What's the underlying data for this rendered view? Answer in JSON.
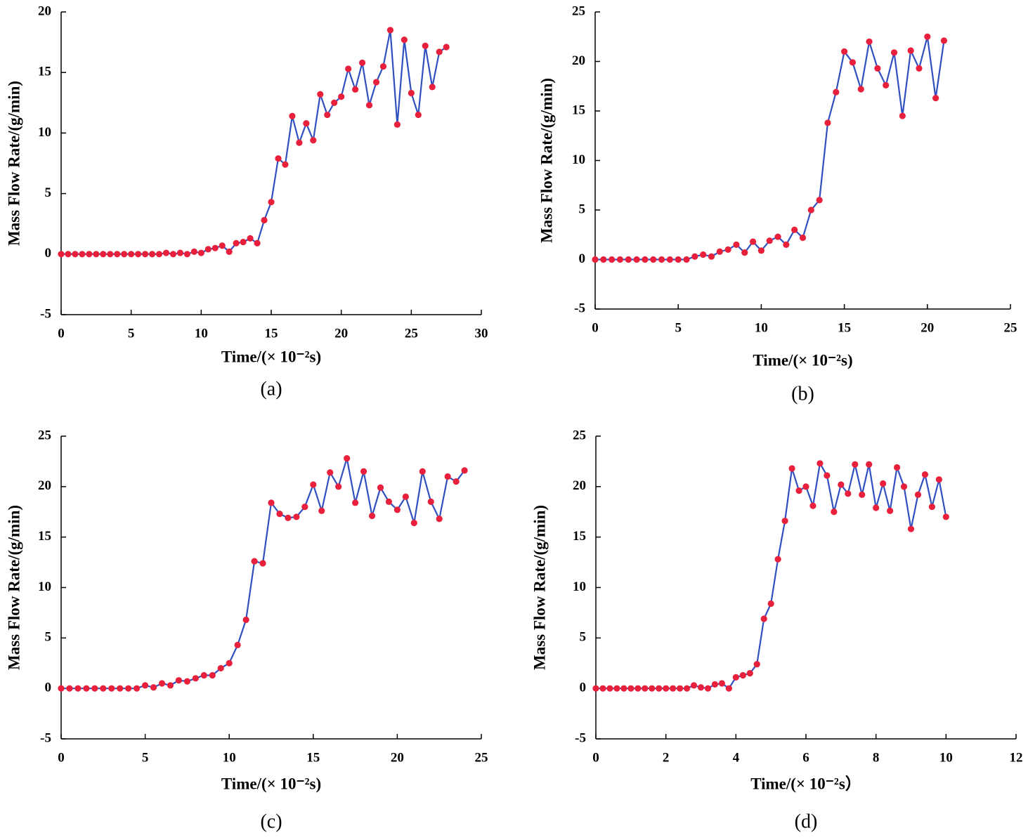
{
  "chart_data": [
    {
      "type": "line",
      "caption": "(a)",
      "xlabel": "Time/(× 10⁻²s)",
      "ylabel": "Mass Flow Rate/(g/min)",
      "x": [
        0,
        0.5,
        1,
        1.5,
        2,
        2.5,
        3,
        3.5,
        4,
        4.5,
        5,
        5.5,
        6,
        6.5,
        7,
        7.5,
        8,
        8.5,
        9,
        9.5,
        10,
        10.5,
        11,
        11.5,
        12,
        12.5,
        13,
        13.5,
        14,
        14.5,
        15,
        15.5,
        16,
        16.5,
        17,
        17.5,
        18,
        18.5,
        19,
        19.5,
        20,
        20.5,
        21,
        21.5,
        22,
        22.5,
        23,
        23.5,
        24,
        24.5,
        25,
        25.5,
        26,
        26.5,
        27,
        27.5
      ],
      "series": [
        {
          "color": "#3050c0",
          "marker_color": "#e8203c",
          "values": [
            0,
            0,
            0,
            0,
            0,
            0,
            0,
            0,
            0,
            0,
            0,
            0,
            0,
            0,
            0,
            0.1,
            0,
            0.1,
            0,
            0.2,
            0.1,
            0.4,
            0.5,
            0.7,
            0.2,
            0.9,
            1.0,
            1.3,
            0.9,
            2.8,
            4.3,
            7.9,
            7.4,
            11.4,
            9.2,
            10.8,
            9.4,
            13.2,
            11.5,
            12.5,
            13.0,
            15.3,
            13.6,
            15.8,
            12.3,
            14.2,
            15.5,
            18.5,
            10.7,
            17.7,
            13.3,
            11.5,
            17.2,
            13.8,
            16.7,
            17.1
          ]
        }
      ],
      "xlim": [
        0,
        30
      ],
      "ylim": [
        -5,
        20
      ],
      "xticks": [
        0,
        5,
        10,
        15,
        20,
        25,
        30
      ],
      "yticks": [
        -5,
        0,
        5,
        10,
        15,
        20
      ]
    },
    {
      "type": "line",
      "caption": "(b)",
      "xlabel": "Time/(× 10⁻²s)",
      "ylabel": "Mass Flow Rate/(g/min)",
      "x": [
        0,
        0.5,
        1,
        1.5,
        2,
        2.5,
        3,
        3.5,
        4,
        4.5,
        5,
        5.5,
        6,
        6.5,
        7,
        7.5,
        8,
        8.5,
        9,
        9.5,
        10,
        10.5,
        11,
        11.5,
        12,
        12.5,
        13,
        13.5,
        14,
        14.5,
        15,
        15.5,
        16,
        16.5,
        17,
        17.5,
        18,
        18.5,
        19,
        19.5,
        20,
        20.5,
        21
      ],
      "series": [
        {
          "color": "#3050c0",
          "marker_color": "#e8203c",
          "values": [
            0,
            0,
            0,
            0,
            0,
            0,
            0,
            0,
            0,
            0,
            0,
            0,
            0.3,
            0.5,
            0.3,
            0.8,
            1.0,
            1.5,
            0.7,
            1.8,
            0.9,
            1.9,
            2.3,
            1.5,
            3.0,
            2.2,
            5.0,
            6.0,
            13.8,
            16.9,
            21.0,
            19.9,
            17.2,
            22.0,
            19.3,
            17.6,
            20.9,
            14.5,
            21.1,
            19.3,
            22.5,
            16.3,
            22.1
          ]
        }
      ],
      "xlim": [
        0,
        25
      ],
      "ylim": [
        -5,
        25
      ],
      "xticks": [
        0,
        5,
        10,
        15,
        20,
        25
      ],
      "yticks": [
        -5,
        0,
        5,
        10,
        15,
        20,
        25
      ]
    },
    {
      "type": "line",
      "caption": "(c)",
      "xlabel": "Time/(× 10⁻²s)",
      "ylabel": "Mass Flow Rate/(g/min)",
      "x": [
        0,
        0.5,
        1,
        1.5,
        2,
        2.5,
        3,
        3.5,
        4,
        4.5,
        5,
        5.5,
        6,
        6.5,
        7,
        7.5,
        8,
        8.5,
        9,
        9.5,
        10,
        10.5,
        11,
        11.5,
        12,
        12.5,
        13,
        13.5,
        14,
        14.5,
        15,
        15.5,
        16,
        16.5,
        17,
        17.5,
        18,
        18.5,
        19,
        19.5,
        20,
        20.5,
        21,
        21.5,
        22,
        22.5,
        23,
        23.5,
        24
      ],
      "series": [
        {
          "color": "#3050c0",
          "marker_color": "#e8203c",
          "values": [
            0,
            0,
            0,
            0,
            0,
            0,
            0,
            0,
            0,
            0,
            0.3,
            0.1,
            0.5,
            0.3,
            0.8,
            0.7,
            1.0,
            1.3,
            1.3,
            2.0,
            2.5,
            4.3,
            6.8,
            12.6,
            12.4,
            18.4,
            17.3,
            16.9,
            17.0,
            18.0,
            20.2,
            17.6,
            21.4,
            20.0,
            22.8,
            18.4,
            21.5,
            17.1,
            19.9,
            18.5,
            17.7,
            19.0,
            16.4,
            21.5,
            18.5,
            16.8,
            21.0,
            20.5,
            21.6
          ]
        }
      ],
      "xlim": [
        0,
        25
      ],
      "ylim": [
        -5,
        25
      ],
      "xticks": [
        0,
        5,
        10,
        15,
        20,
        25
      ],
      "yticks": [
        -5,
        0,
        5,
        10,
        15,
        20,
        25
      ]
    },
    {
      "type": "line",
      "caption": "(d)",
      "xlabel": "Time/(× 10⁻²s）",
      "ylabel": "Mass Flow Rate/(g/min)",
      "x": [
        0,
        0.2,
        0.4,
        0.6,
        0.8,
        1,
        1.2,
        1.4,
        1.6,
        1.8,
        2,
        2.2,
        2.4,
        2.6,
        2.8,
        3,
        3.2,
        3.4,
        3.6,
        3.8,
        4,
        4.2,
        4.4,
        4.6,
        4.8,
        5,
        5.2,
        5.4,
        5.6,
        5.8,
        6,
        6.2,
        6.4,
        6.6,
        6.8,
        7,
        7.2,
        7.4,
        7.6,
        7.8,
        8,
        8.2,
        8.4,
        8.6,
        8.8,
        9,
        9.2,
        9.4,
        9.6,
        9.8,
        10
      ],
      "series": [
        {
          "color": "#3050c0",
          "marker_color": "#e8203c",
          "values": [
            0,
            0,
            0,
            0,
            0,
            0,
            0,
            0,
            0,
            0,
            0,
            0,
            0,
            0,
            0.3,
            0.1,
            0.0,
            0.4,
            0.5,
            0.0,
            1.1,
            1.3,
            1.5,
            2.4,
            6.9,
            8.4,
            12.8,
            16.6,
            21.8,
            19.6,
            20.0,
            18.1,
            22.3,
            21.1,
            17.5,
            20.2,
            19.3,
            22.2,
            19.2,
            22.2,
            17.9,
            20.3,
            17.6,
            21.9,
            20.0,
            15.8,
            19.2,
            21.2,
            18.0,
            20.7,
            17.0
          ]
        }
      ],
      "xlim": [
        0,
        12
      ],
      "ylim": [
        -5,
        25
      ],
      "xticks": [
        0,
        2,
        4,
        6,
        8,
        10,
        12
      ],
      "yticks": [
        -5,
        0,
        5,
        10,
        15,
        20,
        25
      ]
    }
  ]
}
